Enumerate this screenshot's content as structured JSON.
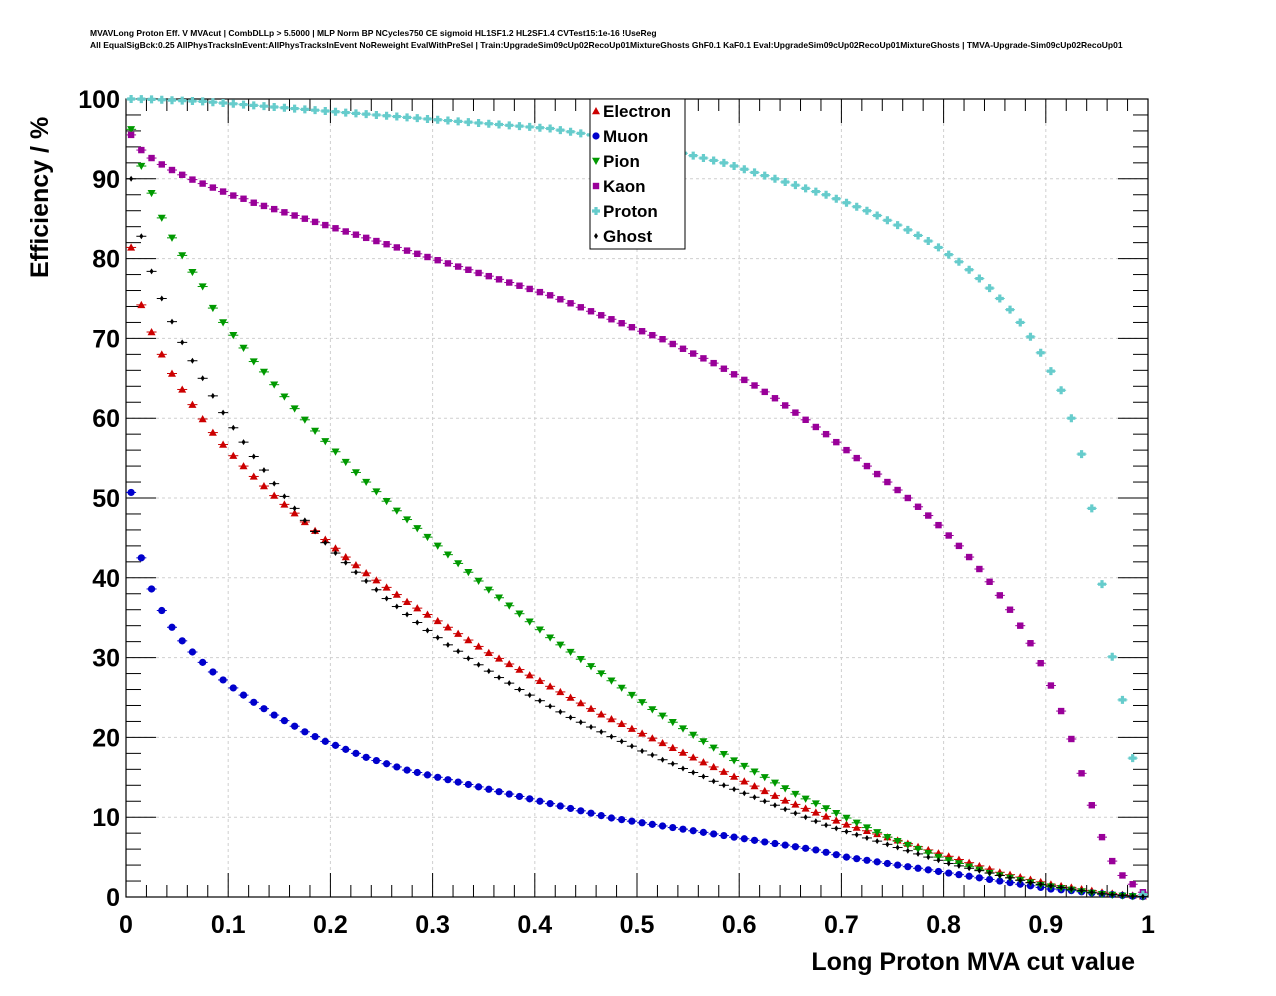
{
  "header": {
    "line1": "MVAVLong Proton Eff. V MVAcut | CombDLLp > 5.5000 | MLP Norm BP NCycles750 CE sigmoid HL1SF1.2 HL2SF1.4 CVTest15:1e-16 !UseReg",
    "line2": "All EqualSigBck:0.25 AllPhysTracksInEvent:AllPhysTracksInEvent NoReweight EvalWithPreSel | Train:UpgradeSim09cUp02RecoUp01MixtureGhosts GhF0.1 KaF0.1 Eval:UpgradeSim09cUp02RecoUp01MixtureGhosts | TMVA-Upgrade-Sim09cUp02RecoUp01"
  },
  "chart_data": {
    "type": "scatter",
    "title": "",
    "xlabel": "Long Proton MVA cut value",
    "ylabel": "Efficiency / %",
    "xlim": [
      0,
      1
    ],
    "ylim": [
      0,
      100
    ],
    "xticks": [
      0,
      0.1,
      0.2,
      0.3,
      0.4,
      0.5,
      0.6,
      0.7,
      0.8,
      0.9,
      1
    ],
    "xtick_labels": [
      "0",
      "0.1",
      "0.2",
      "0.3",
      "0.4",
      "0.5",
      "0.6",
      "0.7",
      "0.8",
      "0.9",
      "1"
    ],
    "yticks": [
      0,
      10,
      20,
      30,
      40,
      50,
      60,
      70,
      80,
      90,
      100
    ],
    "ytick_labels": [
      "0",
      "10",
      "20",
      "30",
      "40",
      "50",
      "60",
      "70",
      "80",
      "90",
      "100"
    ],
    "grid": true,
    "legend": "top-center",
    "x": [
      0.005,
      0.015,
      0.025,
      0.035,
      0.045,
      0.055,
      0.065,
      0.075,
      0.085,
      0.095,
      0.105,
      0.115,
      0.125,
      0.135,
      0.145,
      0.155,
      0.165,
      0.175,
      0.185,
      0.195,
      0.205,
      0.215,
      0.225,
      0.235,
      0.245,
      0.255,
      0.265,
      0.275,
      0.285,
      0.295,
      0.305,
      0.315,
      0.325,
      0.335,
      0.345,
      0.355,
      0.365,
      0.375,
      0.385,
      0.395,
      0.405,
      0.415,
      0.425,
      0.435,
      0.445,
      0.455,
      0.465,
      0.475,
      0.485,
      0.495,
      0.505,
      0.515,
      0.525,
      0.535,
      0.545,
      0.555,
      0.565,
      0.575,
      0.585,
      0.595,
      0.605,
      0.615,
      0.625,
      0.635,
      0.645,
      0.655,
      0.665,
      0.675,
      0.685,
      0.695,
      0.705,
      0.715,
      0.725,
      0.735,
      0.745,
      0.755,
      0.765,
      0.775,
      0.785,
      0.795,
      0.805,
      0.815,
      0.825,
      0.835,
      0.845,
      0.855,
      0.865,
      0.875,
      0.885,
      0.895,
      0.905,
      0.915,
      0.925,
      0.935,
      0.945,
      0.955,
      0.965,
      0.975,
      0.985,
      0.995
    ],
    "series": [
      {
        "name": "Electron",
        "color": "#cc0000",
        "marker": "triangle-up",
        "values": [
          81.4,
          74.2,
          70.8,
          68.0,
          65.6,
          63.6,
          61.7,
          59.9,
          58.2,
          56.7,
          55.3,
          54.0,
          52.7,
          51.5,
          50.3,
          49.2,
          48.1,
          47.0,
          45.9,
          44.8,
          43.7,
          42.6,
          41.6,
          40.6,
          39.7,
          38.8,
          37.9,
          37.0,
          36.2,
          35.4,
          34.6,
          33.8,
          33.0,
          32.2,
          31.4,
          30.6,
          29.9,
          29.2,
          28.5,
          27.8,
          27.1,
          26.4,
          25.7,
          25.0,
          24.3,
          23.6,
          22.9,
          22.3,
          21.7,
          21.1,
          20.5,
          19.9,
          19.3,
          18.7,
          18.1,
          17.5,
          16.9,
          16.3,
          15.7,
          15.1,
          14.5,
          13.9,
          13.3,
          12.7,
          12.1,
          11.6,
          11.1,
          10.6,
          10.1,
          9.6,
          9.1,
          8.7,
          8.3,
          7.9,
          7.5,
          7.1,
          6.7,
          6.3,
          5.9,
          5.5,
          5.1,
          4.7,
          4.3,
          3.9,
          3.5,
          3.1,
          2.8,
          2.5,
          2.2,
          1.9,
          1.6,
          1.4,
          1.2,
          1.0,
          0.8,
          0.6,
          0.45,
          0.3,
          0.2,
          0.1
        ]
      },
      {
        "name": "Muon",
        "color": "#0000cc",
        "marker": "circle",
        "values": [
          50.7,
          42.5,
          38.6,
          35.9,
          33.8,
          32.1,
          30.7,
          29.4,
          28.2,
          27.2,
          26.2,
          25.3,
          24.4,
          23.6,
          22.8,
          22.1,
          21.4,
          20.7,
          20.1,
          19.5,
          19.0,
          18.5,
          18.0,
          17.5,
          17.1,
          16.7,
          16.3,
          15.9,
          15.6,
          15.3,
          15.0,
          14.7,
          14.4,
          14.1,
          13.8,
          13.5,
          13.2,
          12.9,
          12.6,
          12.3,
          12.0,
          11.7,
          11.4,
          11.1,
          10.8,
          10.5,
          10.2,
          9.9,
          9.7,
          9.5,
          9.3,
          9.1,
          8.9,
          8.7,
          8.5,
          8.3,
          8.1,
          7.9,
          7.7,
          7.5,
          7.3,
          7.1,
          6.9,
          6.7,
          6.5,
          6.3,
          6.1,
          5.9,
          5.6,
          5.3,
          5.0,
          4.8,
          4.6,
          4.4,
          4.2,
          4.0,
          3.8,
          3.6,
          3.4,
          3.2,
          3.0,
          2.8,
          2.6,
          2.4,
          2.2,
          2.0,
          1.8,
          1.6,
          1.4,
          1.2,
          1.0,
          0.9,
          0.8,
          0.65,
          0.5,
          0.4,
          0.3,
          0.2,
          0.1,
          0.05
        ]
      },
      {
        "name": "Pion",
        "color": "#009900",
        "marker": "triangle-down",
        "values": [
          96.2,
          91.6,
          88.2,
          85.1,
          82.6,
          80.4,
          78.3,
          76.5,
          73.8,
          72.0,
          70.4,
          68.8,
          67.1,
          65.8,
          64.2,
          62.7,
          61.2,
          59.8,
          58.4,
          57.1,
          55.8,
          54.5,
          53.2,
          52.0,
          50.8,
          49.6,
          48.4,
          47.3,
          46.2,
          45.1,
          44.0,
          42.9,
          41.8,
          40.7,
          39.6,
          38.5,
          37.5,
          36.5,
          35.5,
          34.5,
          33.5,
          32.5,
          31.6,
          30.7,
          29.8,
          28.9,
          28.0,
          27.1,
          26.2,
          25.3,
          24.4,
          23.5,
          22.7,
          21.9,
          21.1,
          20.3,
          19.5,
          18.7,
          17.9,
          17.1,
          16.4,
          15.7,
          15.0,
          14.3,
          13.6,
          12.9,
          12.3,
          11.7,
          11.1,
          10.5,
          9.9,
          9.3,
          8.7,
          8.1,
          7.5,
          7.0,
          6.5,
          6.0,
          5.5,
          5.0,
          4.6,
          4.2,
          3.8,
          3.4,
          3.0,
          2.7,
          2.4,
          2.1,
          1.8,
          1.5,
          1.3,
          1.1,
          0.9,
          0.7,
          0.5,
          0.35,
          0.25,
          0.15,
          0.08,
          0.03
        ]
      },
      {
        "name": "Kaon",
        "color": "#990099",
        "marker": "square",
        "values": [
          95.5,
          93.6,
          92.6,
          91.8,
          91.1,
          90.5,
          89.9,
          89.4,
          88.9,
          88.4,
          87.9,
          87.5,
          87.0,
          86.6,
          86.2,
          85.8,
          85.4,
          85.0,
          84.6,
          84.2,
          83.8,
          83.4,
          83.0,
          82.6,
          82.2,
          81.8,
          81.4,
          81.0,
          80.6,
          80.2,
          79.8,
          79.4,
          79.0,
          78.6,
          78.2,
          77.8,
          77.4,
          77.0,
          76.6,
          76.2,
          75.8,
          75.4,
          74.9,
          74.4,
          73.9,
          73.4,
          72.9,
          72.4,
          71.9,
          71.4,
          70.9,
          70.4,
          69.9,
          69.3,
          68.7,
          68.1,
          67.5,
          66.9,
          66.2,
          65.5,
          64.8,
          64.1,
          63.3,
          62.5,
          61.6,
          60.7,
          59.8,
          58.9,
          58.0,
          57.0,
          56.0,
          55.0,
          54.0,
          53.0,
          52.0,
          51.0,
          50.0,
          48.9,
          47.8,
          46.6,
          45.3,
          44.0,
          42.6,
          41.1,
          39.5,
          37.8,
          36.0,
          34.0,
          31.8,
          29.3,
          26.5,
          23.3,
          19.8,
          15.5,
          11.5,
          7.5,
          4.5,
          2.7,
          1.6,
          0.6
        ]
      },
      {
        "name": "Proton",
        "color": "#66cccc",
        "marker": "cross",
        "values": [
          100.0,
          99.98,
          99.95,
          99.9,
          99.85,
          99.8,
          99.75,
          99.7,
          99.6,
          99.5,
          99.4,
          99.3,
          99.2,
          99.1,
          99.0,
          98.9,
          98.8,
          98.7,
          98.6,
          98.5,
          98.4,
          98.3,
          98.2,
          98.1,
          98.0,
          97.9,
          97.8,
          97.7,
          97.6,
          97.5,
          97.4,
          97.3,
          97.2,
          97.1,
          97.0,
          96.9,
          96.8,
          96.7,
          96.6,
          96.5,
          96.4,
          96.3,
          96.1,
          95.9,
          95.7,
          95.5,
          95.3,
          95.1,
          94.9,
          94.7,
          94.4,
          94.1,
          93.8,
          93.5,
          93.2,
          92.9,
          92.6,
          92.3,
          92.0,
          91.6,
          91.2,
          90.8,
          90.4,
          90.0,
          89.6,
          89.2,
          88.8,
          88.4,
          88.0,
          87.5,
          87.0,
          86.5,
          86.0,
          85.4,
          84.8,
          84.2,
          83.6,
          82.9,
          82.2,
          81.4,
          80.5,
          79.6,
          78.6,
          77.5,
          76.3,
          75.0,
          73.6,
          72.0,
          70.2,
          68.2,
          65.9,
          63.5,
          60.0,
          55.5,
          48.7,
          39.2,
          30.1,
          24.7,
          17.4,
          0.3
        ]
      },
      {
        "name": "Ghost",
        "color": "#000000",
        "marker": "diamond",
        "values": [
          90.0,
          82.8,
          78.4,
          75.0,
          72.1,
          69.5,
          67.2,
          65.0,
          62.8,
          60.7,
          58.8,
          57.0,
          55.2,
          53.5,
          51.8,
          50.2,
          48.7,
          47.2,
          45.8,
          44.4,
          43.1,
          41.9,
          40.7,
          39.6,
          38.5,
          37.4,
          36.4,
          35.4,
          34.4,
          33.4,
          32.5,
          31.6,
          30.8,
          29.9,
          29.1,
          28.3,
          27.5,
          26.8,
          26.0,
          25.3,
          24.6,
          23.9,
          23.2,
          22.5,
          21.9,
          21.3,
          20.7,
          20.1,
          19.5,
          18.9,
          18.3,
          17.8,
          17.2,
          16.7,
          16.1,
          15.6,
          15.1,
          14.5,
          14.0,
          13.5,
          13.0,
          12.5,
          12.0,
          11.5,
          11.0,
          10.5,
          10.0,
          9.5,
          9.0,
          8.6,
          8.2,
          7.8,
          7.4,
          7.0,
          6.6,
          6.2,
          5.8,
          5.4,
          5.0,
          4.6,
          4.2,
          3.9,
          3.6,
          3.3,
          3.0,
          2.7,
          2.4,
          2.1,
          1.8,
          1.6,
          1.4,
          1.2,
          1.0,
          0.8,
          0.6,
          0.4,
          0.3,
          0.2,
          0.1,
          0.05
        ]
      }
    ]
  }
}
